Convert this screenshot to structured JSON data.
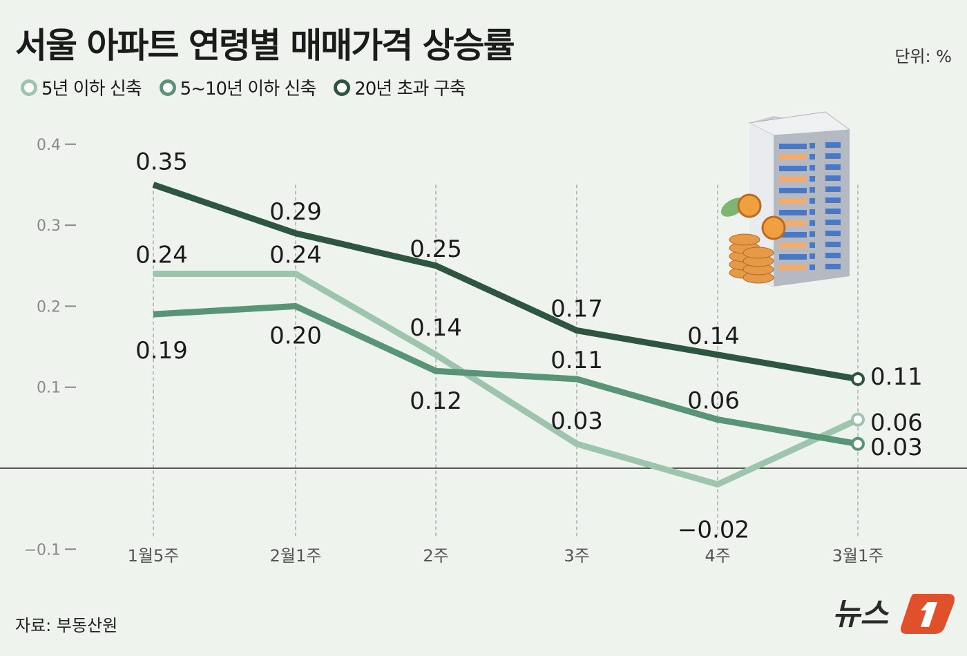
{
  "title": "서울 아파트 연령별 매매가격 상승률",
  "unit": "단위: %",
  "source": "자료: 부동산원",
  "logo_text": "뉴스1",
  "colors": {
    "background": "#eef3ee",
    "series1": "#9dc4ad",
    "series2": "#5a9476",
    "series3": "#2e5540",
    "logo": "#e0502a"
  },
  "chart_data": {
    "type": "line",
    "title": "서울 아파트 연령별 매매가격 상승률",
    "categories": [
      "1월5주",
      "2월1주",
      "2주",
      "3주",
      "4주",
      "3월1주"
    ],
    "ylim": [
      -0.1,
      0.4
    ],
    "yticks": [
      "0.4",
      "0.3",
      "0.2",
      "0.1",
      "-0.1"
    ],
    "grid": "vertical dashed",
    "legend": "top-left",
    "series": [
      {
        "name": "5년 이하 신축",
        "color": "#9dc4ad",
        "values": [
          0.24,
          0.24,
          0.14,
          0.03,
          -0.02,
          0.06
        ],
        "labels": [
          "0.24",
          "0.24",
          "0.14",
          "0.03",
          "-0.02",
          "0.06"
        ]
      },
      {
        "name": "5~10년 이하 신축",
        "color": "#5a9476",
        "values": [
          0.19,
          0.2,
          0.12,
          0.11,
          0.06,
          0.03
        ],
        "labels": [
          "0.19",
          "0.20",
          "0.12",
          "0.11",
          "0.06",
          "0.03"
        ]
      },
      {
        "name": "20년 초과 구축",
        "color": "#2e5540",
        "values": [
          0.35,
          0.29,
          0.25,
          0.17,
          0.14,
          0.11
        ],
        "labels": [
          "0.35",
          "0.29",
          "0.25",
          "0.17",
          "0.14",
          "0.11"
        ]
      }
    ]
  }
}
